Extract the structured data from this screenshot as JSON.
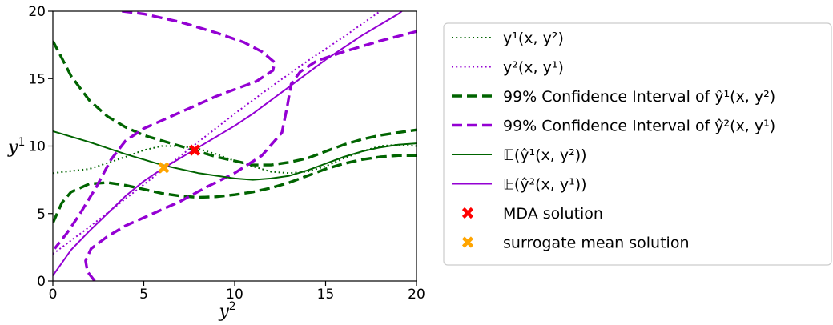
{
  "chart_data": {
    "type": "line",
    "title": "",
    "xlabel": "y",
    "xlabel_sup": "2",
    "ylabel": "y",
    "ylabel_sup": "1",
    "xlim": [
      0,
      20
    ],
    "ylim": [
      0,
      20
    ],
    "xticks": [
      0,
      5,
      10,
      15,
      20
    ],
    "yticks": [
      0,
      5,
      10,
      15,
      20
    ],
    "grid": false,
    "legend_position": "right",
    "colors": {
      "green": "#006400",
      "purple": "#9400d3",
      "red": "#ff0000",
      "orange": "#ffa500"
    },
    "series": [
      {
        "key": "y1",
        "name": "y¹(x, y²)",
        "style": "dotted",
        "color": "#006400",
        "x": [
          0,
          2,
          4,
          5,
          6,
          7,
          8,
          9,
          10,
          11,
          12,
          13,
          14,
          15,
          16,
          17,
          18,
          19,
          20
        ],
        "y": [
          8.0,
          8.3,
          9.2,
          9.7,
          10.0,
          10.0,
          9.8,
          9.4,
          8.9,
          8.5,
          8.1,
          8.0,
          8.1,
          8.5,
          9.1,
          9.6,
          10.0,
          10.1,
          10.0
        ]
      },
      {
        "key": "y2",
        "name": "y²(x, y¹)",
        "style": "dotted",
        "color": "#9400d3",
        "x": [
          0,
          2,
          4,
          6,
          8,
          10,
          12,
          14,
          16,
          18
        ],
        "y": [
          2.0,
          4.0,
          6.1,
          8.2,
          10.3,
          12.4,
          14.4,
          16.3,
          18.1,
          20.0
        ]
      },
      {
        "key": "ci1_upper",
        "name": "99% Confidence Interval of ŷ¹(x, y²)",
        "style": "dashed",
        "color": "#006400",
        "x": [
          0,
          1,
          2,
          3,
          4,
          5,
          6,
          7,
          8,
          9,
          10,
          11,
          12,
          13,
          14,
          15,
          16,
          17,
          18,
          19,
          20
        ],
        "y": [
          17.8,
          15.2,
          13.4,
          12.2,
          11.4,
          10.8,
          10.4,
          10.0,
          9.6,
          9.2,
          8.9,
          8.6,
          8.6,
          8.8,
          9.1,
          9.6,
          10.1,
          10.5,
          10.8,
          11.0,
          11.2
        ]
      },
      {
        "key": "ci1_lower",
        "name": "99% Confidence Interval of ŷ¹(x, y²)",
        "style": "dashed",
        "color": "#006400",
        "x": [
          0,
          0.5,
          1,
          2,
          3,
          4,
          5,
          6,
          7,
          8,
          9,
          10,
          11,
          12,
          13,
          14,
          15,
          16,
          17,
          18,
          19,
          20
        ],
        "y": [
          4.3,
          5.8,
          6.6,
          7.2,
          7.3,
          7.1,
          6.8,
          6.5,
          6.3,
          6.2,
          6.25,
          6.4,
          6.6,
          6.9,
          7.3,
          7.8,
          8.3,
          8.7,
          9.0,
          9.2,
          9.3,
          9.3
        ]
      },
      {
        "key": "ci2_upper",
        "name": "99% Confidence Interval of ŷ²(x, y¹)",
        "style": "dashed",
        "color": "#9400d3",
        "x": [
          3.8,
          5,
          7,
          9,
          10.5,
          11.5,
          12.2,
          12.1,
          11.2,
          10,
          9,
          8,
          7,
          6,
          5,
          4,
          3.2,
          2.4,
          1.5,
          0.8,
          0.1
        ],
        "y": [
          20.0,
          19.8,
          19.2,
          18.4,
          17.7,
          17.0,
          16.2,
          15.6,
          14.8,
          14.2,
          13.7,
          13.1,
          12.5,
          11.9,
          11.3,
          10.4,
          9.0,
          7.0,
          5.0,
          3.6,
          2.4
        ]
      },
      {
        "key": "ci2_lower",
        "name": "99% Confidence Interval of ŷ²(x, y¹)",
        "style": "dashed",
        "color": "#9400d3",
        "x": [
          2.3,
          1.9,
          1.8,
          2.1,
          3,
          4,
          5.5,
          7,
          8.5,
          10,
          11.5,
          12.6,
          12.9,
          13.1,
          13.6,
          14.5,
          16,
          18,
          20
        ],
        "y": [
          0.0,
          0.7,
          1.5,
          2.4,
          3.3,
          4.1,
          5.0,
          5.9,
          7.0,
          8.0,
          9.3,
          11.0,
          13.0,
          14.6,
          15.5,
          16.3,
          17.0,
          17.8,
          18.5
        ]
      },
      {
        "key": "mean1",
        "name": "𝔼(ŷ¹(x, y²))",
        "style": "solid",
        "color": "#006400",
        "x": [
          0,
          2,
          4,
          6,
          8,
          10,
          11,
          12,
          13,
          14,
          15,
          16,
          17,
          18,
          19,
          20
        ],
        "y": [
          11.1,
          10.3,
          9.4,
          8.6,
          8.0,
          7.6,
          7.5,
          7.6,
          7.8,
          8.2,
          8.7,
          9.2,
          9.6,
          9.9,
          10.1,
          10.2
        ]
      },
      {
        "key": "mean2",
        "name": "𝔼(ŷ²(x, y¹))",
        "style": "solid",
        "color": "#9400d3",
        "x": [
          0,
          1,
          2,
          3,
          4,
          5,
          6,
          7,
          8,
          9,
          10,
          11,
          12,
          13,
          14,
          15,
          16,
          17,
          18,
          19,
          19.2
        ],
        "y": [
          0.4,
          2.3,
          3.7,
          5.0,
          6.3,
          7.4,
          8.3,
          9.1,
          9.9,
          10.7,
          11.5,
          12.4,
          13.4,
          14.4,
          15.4,
          16.4,
          17.3,
          18.2,
          19.0,
          19.8,
          20.0
        ]
      }
    ],
    "points": [
      {
        "key": "mda",
        "name": "MDA solution",
        "x": 7.8,
        "y": 9.7,
        "color": "#ff0000",
        "marker": "X"
      },
      {
        "key": "surrogate",
        "name": "surrogate mean solution",
        "x": 6.1,
        "y": 8.4,
        "color": "#ffa500",
        "marker": "X"
      }
    ],
    "legend": [
      {
        "label": "y¹(x, y²)",
        "style": "dotted",
        "color": "#006400"
      },
      {
        "label": "y²(x, y¹)",
        "style": "dotted",
        "color": "#9400d3"
      },
      {
        "label": "99% Confidence Interval of ŷ¹(x, y²)",
        "style": "dashed",
        "color": "#006400"
      },
      {
        "label": "99% Confidence Interval of ŷ²(x, y¹)",
        "style": "dashed",
        "color": "#9400d3"
      },
      {
        "label": "𝔼(ŷ¹(x, y²))",
        "style": "solid",
        "color": "#006400"
      },
      {
        "label": "𝔼(ŷ²(x, y¹))",
        "style": "solid",
        "color": "#9400d3"
      },
      {
        "label": "MDA solution",
        "style": "marker",
        "color": "#ff0000"
      },
      {
        "label": "surrogate mean solution",
        "style": "marker",
        "color": "#ffa500"
      }
    ]
  }
}
